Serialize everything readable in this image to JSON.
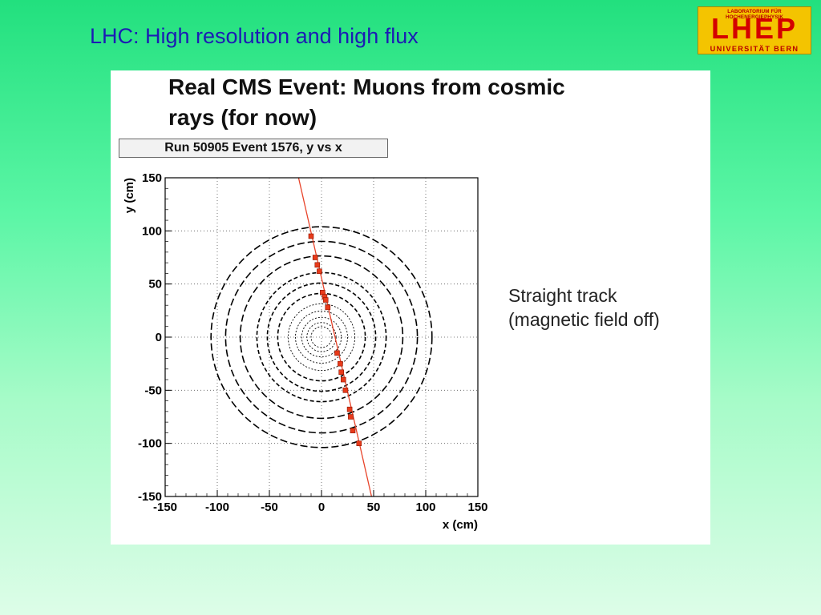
{
  "slide": {
    "title": "LHC: High resolution and high flux",
    "logo": {
      "top_text": "LABORATORIUM FÜR HOCHENERGIEPHYSIK",
      "main_text": "LHEP",
      "bottom_text": "UNIVERSITÄT BERN"
    },
    "heading_line1": "Real CMS Event: Muons from cosmic",
    "heading_line2": "rays (for now)",
    "annotation_line1": "Straight track",
    "annotation_line2": "(magnetic field off)"
  },
  "colors": {
    "title": "#1c1cb4",
    "logo_bg": "#f4c400",
    "logo_text": "#d40000",
    "track": "#e8442a",
    "hits": "#e83a1a",
    "detector": "#000000"
  },
  "chart_data": {
    "type": "scatter",
    "title": "Run 50905 Event 1576, y vs x",
    "xlabel": "x (cm)",
    "ylabel": "y (cm)",
    "xlim": [
      -150,
      150
    ],
    "ylim": [
      -150,
      150
    ],
    "xticks": [
      -150,
      -100,
      -50,
      0,
      50,
      100,
      150
    ],
    "yticks": [
      -150,
      -100,
      -50,
      0,
      50,
      100,
      150
    ],
    "grid": true,
    "track_line": {
      "x": [
        -22,
        48
      ],
      "y": [
        150,
        -150
      ]
    },
    "series": [
      {
        "x": [
          -10,
          -6,
          -4,
          -2,
          1,
          3,
          4,
          6,
          15,
          18,
          19,
          21,
          23,
          27,
          28,
          30,
          36
        ],
        "y": [
          95,
          75,
          68,
          62,
          42,
          38,
          35,
          28,
          -15,
          -25,
          -33,
          -40,
          -50,
          -68,
          -75,
          -88,
          -100
        ]
      }
    ],
    "detector_rings_radius": [
      10,
      14,
      19,
      25,
      32,
      42,
      52,
      62,
      78,
      92,
      106
    ]
  }
}
